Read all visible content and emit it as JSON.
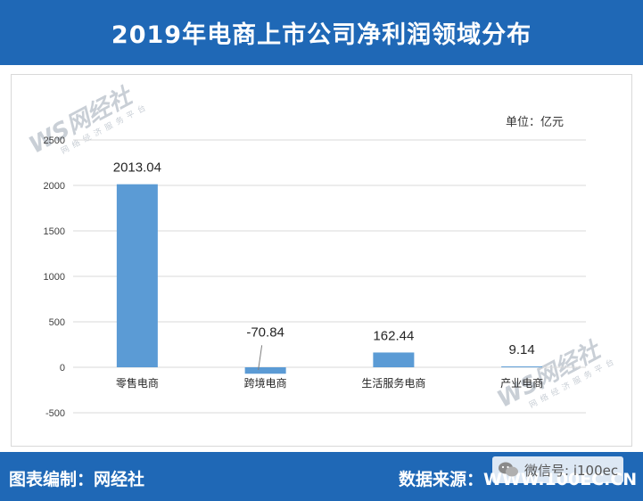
{
  "header": {
    "title": "2019年电商上市公司净利润领域分布"
  },
  "unit": "单位：亿元",
  "watermark": {
    "logo": "WS网经社",
    "sub": "网 络 经 济 服 务 平 台"
  },
  "chart_data": {
    "type": "bar",
    "title": "2019年电商上市公司净利润领域分布",
    "categories": [
      "零售电商",
      "跨境电商",
      "生活服务电商",
      "产业电商"
    ],
    "values": [
      2013.04,
      -70.84,
      162.44,
      9.14
    ],
    "value_labels": [
      "2013.04",
      "-70.84",
      "162.44",
      "9.14"
    ],
    "ylim": [
      -500,
      2500
    ],
    "yticks": [
      -500,
      0,
      500,
      1000,
      1500,
      2000,
      2500
    ],
    "grid": true,
    "bar_color": "#5b9bd5",
    "xlabel": "",
    "ylabel": ""
  },
  "footer": {
    "left": "图表编制：网经社",
    "right": "数据来源：WWW.100EC.CN",
    "wechat": "微信号: i100ec"
  },
  "colors": {
    "brand_blue": "#1f68b6",
    "bar": "#5b9bd5",
    "grid": "#d9d9d9"
  }
}
